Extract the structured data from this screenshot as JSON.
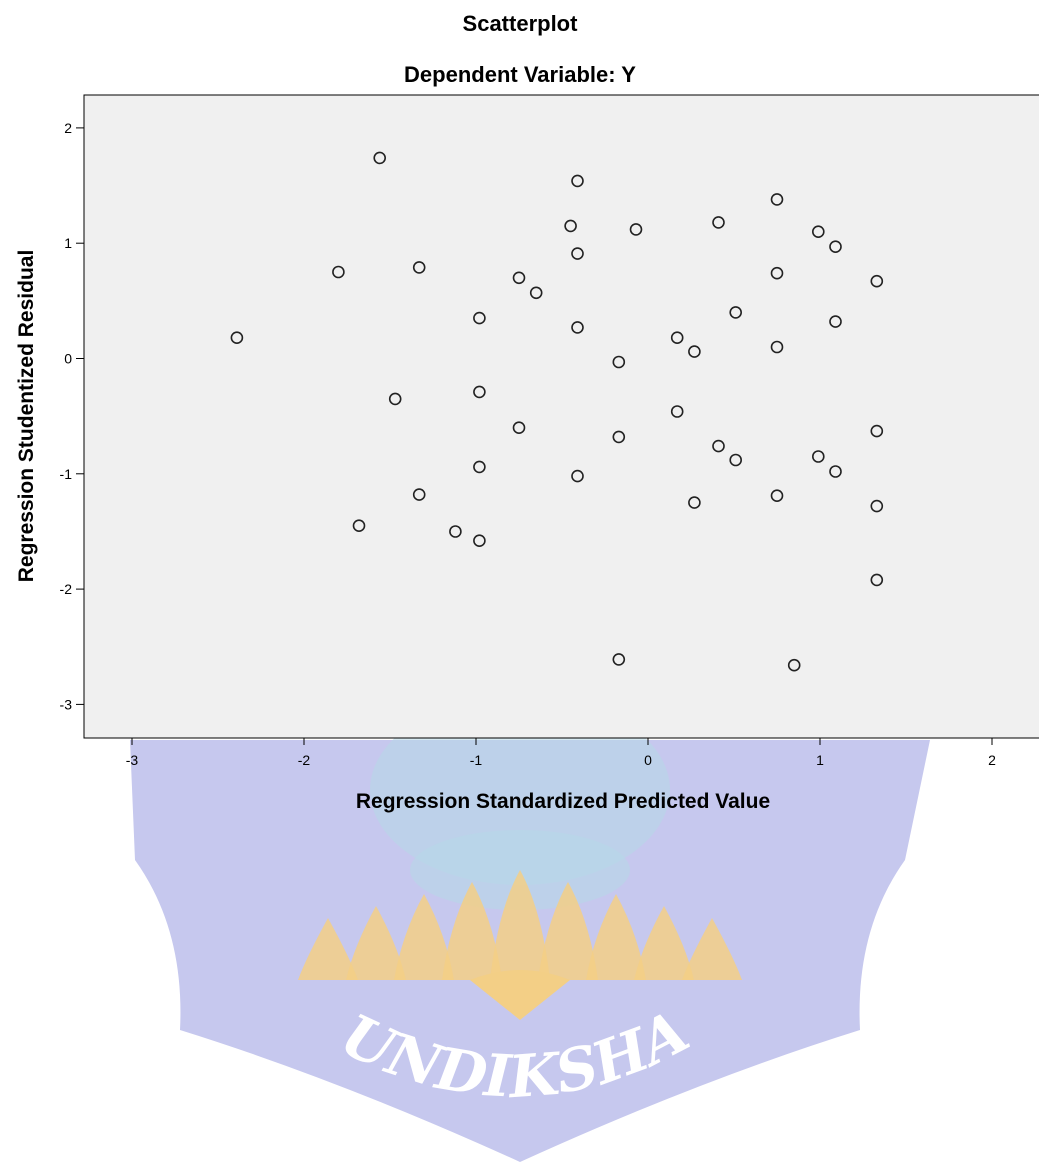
{
  "chart_data": {
    "type": "scatter",
    "title": "Scatterplot",
    "subtitle": "Dependent Variable: Y",
    "xlabel": "Regression Standardized Predicted Value",
    "ylabel": "Regression Studentized Residual",
    "xlim": [
      -3,
      2
    ],
    "ylim": [
      -3,
      2
    ],
    "x_ticks": [
      "-3",
      "-2",
      "-1",
      "0",
      "1",
      "2"
    ],
    "y_ticks": [
      "2",
      "1",
      "0",
      "-1",
      "-2",
      "-3"
    ],
    "grid": false,
    "plot_background": "#f0f0f0",
    "marker": "hollow-circle",
    "points": [
      {
        "x": -2.39,
        "y": 0.18
      },
      {
        "x": -1.8,
        "y": 0.75
      },
      {
        "x": -1.68,
        "y": -1.45
      },
      {
        "x": -1.56,
        "y": 1.74
      },
      {
        "x": -1.47,
        "y": -0.35
      },
      {
        "x": -1.33,
        "y": 0.79
      },
      {
        "x": -1.33,
        "y": -1.18
      },
      {
        "x": -1.12,
        "y": -1.5
      },
      {
        "x": -0.98,
        "y": 0.35
      },
      {
        "x": -0.98,
        "y": -0.29
      },
      {
        "x": -0.98,
        "y": -0.94
      },
      {
        "x": -0.98,
        "y": -1.58
      },
      {
        "x": -0.75,
        "y": 0.7
      },
      {
        "x": -0.75,
        "y": -0.6
      },
      {
        "x": -0.65,
        "y": 0.57
      },
      {
        "x": -0.45,
        "y": 1.15
      },
      {
        "x": -0.41,
        "y": 1.54
      },
      {
        "x": -0.41,
        "y": 0.91
      },
      {
        "x": -0.41,
        "y": 0.27
      },
      {
        "x": -0.41,
        "y": -1.02
      },
      {
        "x": -0.17,
        "y": -0.03
      },
      {
        "x": -0.17,
        "y": -0.68
      },
      {
        "x": -0.17,
        "y": -2.61
      },
      {
        "x": -0.07,
        "y": 1.12
      },
      {
        "x": 0.17,
        "y": 0.18
      },
      {
        "x": 0.17,
        "y": -0.46
      },
      {
        "x": 0.27,
        "y": 0.06
      },
      {
        "x": 0.27,
        "y": -1.25
      },
      {
        "x": 0.41,
        "y": 1.18
      },
      {
        "x": 0.41,
        "y": -0.76
      },
      {
        "x": 0.51,
        "y": 0.4
      },
      {
        "x": 0.51,
        "y": -0.88
      },
      {
        "x": 0.75,
        "y": 1.38
      },
      {
        "x": 0.75,
        "y": 0.74
      },
      {
        "x": 0.75,
        "y": 0.1
      },
      {
        "x": 0.75,
        "y": -1.19
      },
      {
        "x": 0.85,
        "y": -2.66
      },
      {
        "x": 0.99,
        "y": 1.1
      },
      {
        "x": 0.99,
        "y": -0.85
      },
      {
        "x": 1.09,
        "y": 0.97
      },
      {
        "x": 1.09,
        "y": 0.32
      },
      {
        "x": 1.09,
        "y": -0.98
      },
      {
        "x": 1.33,
        "y": 0.67
      },
      {
        "x": 1.33,
        "y": -0.63
      },
      {
        "x": 1.33,
        "y": -1.28
      },
      {
        "x": 1.33,
        "y": -1.92
      }
    ]
  },
  "watermark": {
    "text": "UNDIKSHA",
    "colors": {
      "shield": "#c6c8ee",
      "lotus": "#f3cf86",
      "figure": "#b6d8e8"
    }
  }
}
